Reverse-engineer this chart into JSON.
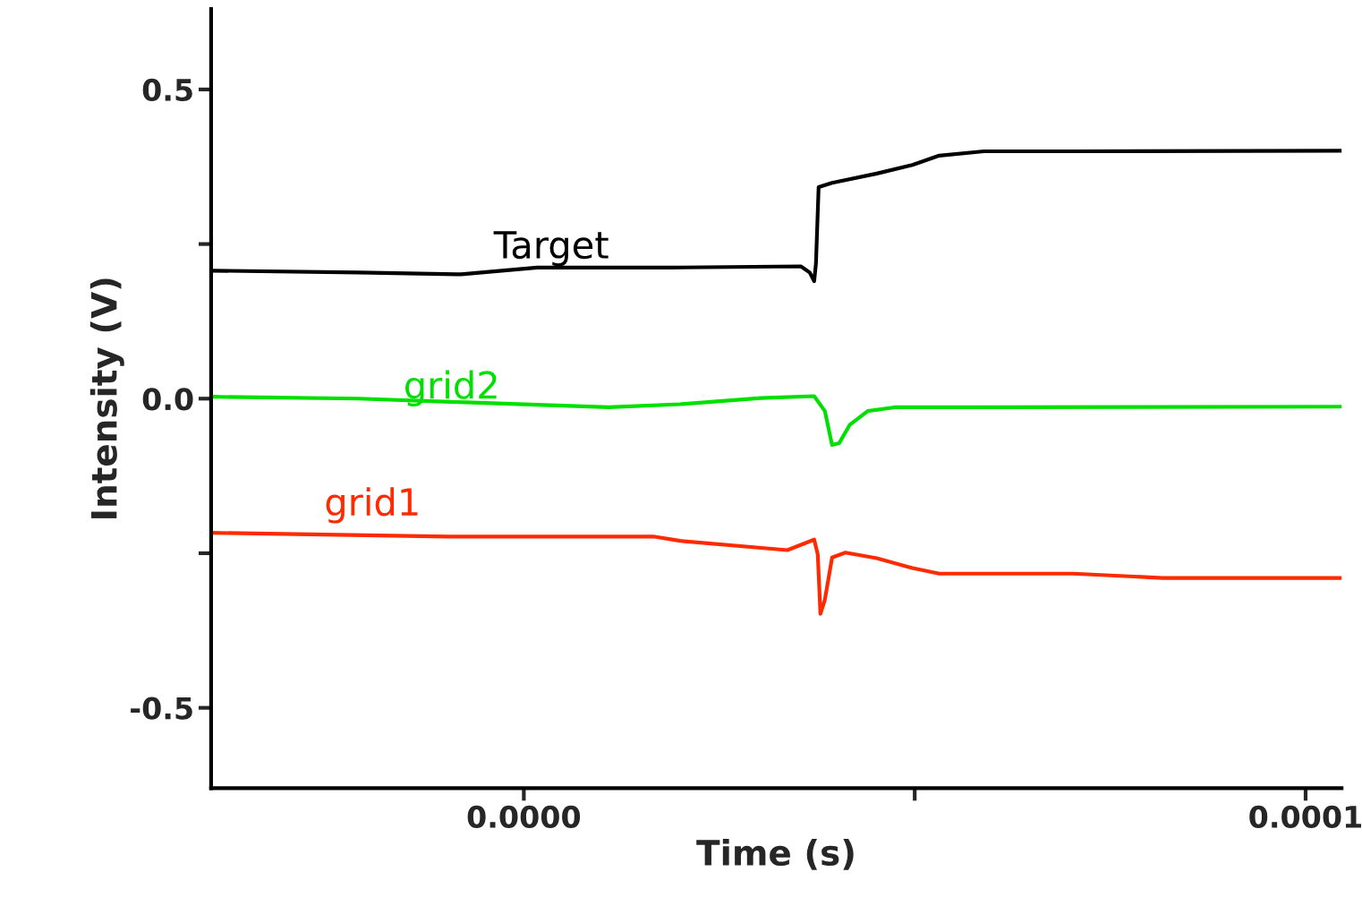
{
  "chart_data": {
    "type": "line",
    "xlabel": "Time (s)",
    "ylabel": "Intensity (V)",
    "xlim": [
      -4e-05,
      0.0001046
    ],
    "xticks": [
      {
        "value": 0,
        "label": "0.0000"
      },
      {
        "value": 5e-05,
        "label": null
      },
      {
        "value": 0.0001,
        "label": "0.0001"
      }
    ],
    "ylim": [
      -0.63,
      0.63
    ],
    "yticks": [
      {
        "value": -0.5,
        "label": "-0.5"
      },
      {
        "value": -0.25,
        "label": null
      },
      {
        "value": 0.0,
        "label": "0.0"
      },
      {
        "value": 0.25,
        "label": null
      },
      {
        "value": 0.5,
        "label": "0.5"
      }
    ],
    "grid": false,
    "legend": false,
    "marker": "none",
    "line_style": "solid",
    "series": [
      {
        "name": "Target",
        "color": "#000000",
        "x": [
          -4e-05,
          -2.114e-05,
          -8e-06,
          1.71e-06,
          1.886e-05,
          3.543e-05,
          3.657e-05,
          3.714e-05,
          3.737e-05,
          3.771e-05,
          3.943e-05,
          4.514e-05,
          4.971e-05,
          5.314e-05,
          5.886e-05,
          7.029e-05,
          0.00010457
        ],
        "values": [
          0.207,
          0.204,
          0.201,
          0.212,
          0.212,
          0.214,
          0.204,
          0.19,
          0.219,
          0.342,
          0.349,
          0.364,
          0.378,
          0.393,
          0.4,
          0.4,
          0.401
        ]
      },
      {
        "name": "grid2",
        "color": "#00e000",
        "x": [
          -4e-05,
          -2.114e-05,
          -7.43e-06,
          1.086e-05,
          2e-05,
          3.029e-05,
          3.714e-05,
          3.851e-05,
          3.943e-05,
          4.034e-05,
          4.171e-05,
          4.4e-05,
          4.743e-05,
          5.886e-05,
          0.00010457
        ],
        "values": [
          0.003,
          0.0,
          -0.006,
          -0.014,
          -0.009,
          0.001,
          0.004,
          -0.02,
          -0.075,
          -0.072,
          -0.042,
          -0.02,
          -0.014,
          -0.014,
          -0.013
        ]
      },
      {
        "name": "grid1",
        "color": "#ff2a00",
        "x": [
          -4e-05,
          -9.71e-06,
          1.657e-05,
          2e-05,
          3.371e-05,
          3.714e-05,
          3.76e-05,
          3.794e-05,
          3.851e-05,
          3.943e-05,
          4.114e-05,
          4.514e-05,
          4.971e-05,
          5.314e-05,
          7.029e-05,
          8.171e-05,
          0.00010457
        ],
        "values": [
          -0.217,
          -0.223,
          -0.223,
          -0.23,
          -0.245,
          -0.228,
          -0.252,
          -0.348,
          -0.325,
          -0.257,
          -0.249,
          -0.258,
          -0.274,
          -0.283,
          -0.283,
          -0.29,
          -0.29
        ]
      }
    ]
  }
}
